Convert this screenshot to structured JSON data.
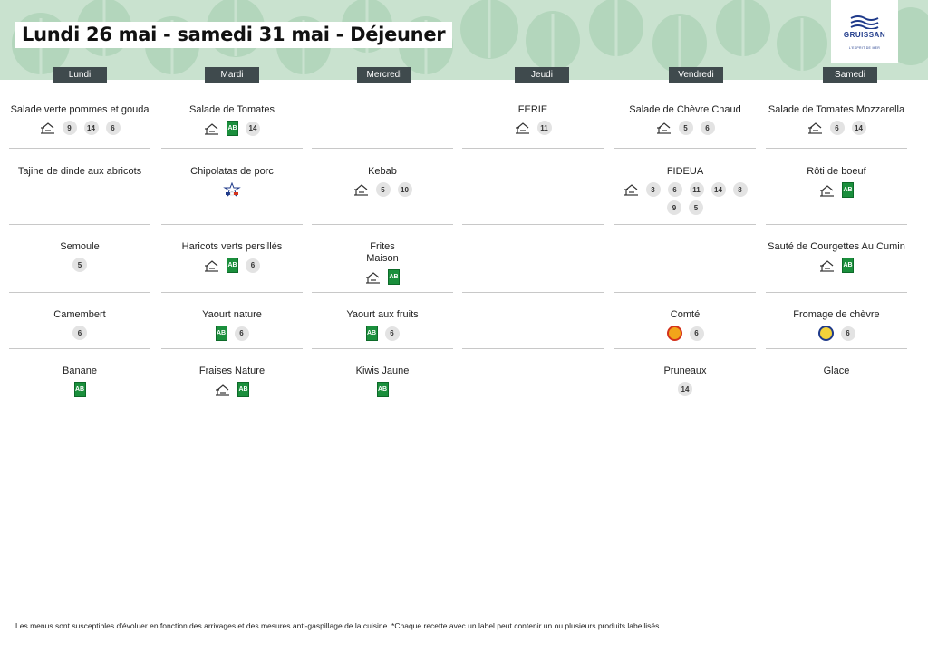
{
  "title": "Lundi 26 mai - samedi 31 mai  - Déjeuner",
  "logo": {
    "name": "GRUISSAN",
    "tagline": "L'ESPRIT DE MER"
  },
  "days": [
    "Lundi",
    "Mardi",
    "Mercredi",
    "Jeudi",
    "Vendredi",
    "Samedi"
  ],
  "menu": {
    "lundi": [
      {
        "name": "Salade verte pommes et gouda",
        "icons": [
          "house-icon"
        ],
        "badges": [
          "9",
          "14",
          "6"
        ]
      },
      {
        "name": "Tajine de dinde aux abricots",
        "icons": [],
        "badges": []
      },
      {
        "name": "Semoule",
        "icons": [],
        "badges": [
          "5"
        ]
      },
      {
        "name": "Camembert",
        "icons": [],
        "badges": [
          "6"
        ]
      },
      {
        "name": "Banane",
        "icons": [
          "ab-icon"
        ],
        "badges": []
      }
    ],
    "mardi": [
      {
        "name": "Salade de Tomates",
        "icons": [
          "house-icon",
          "ab-icon"
        ],
        "badges": [
          "14"
        ]
      },
      {
        "name": "Chipolatas de porc",
        "icons": [
          "vpf-icon"
        ],
        "badges": []
      },
      {
        "name": "Haricots verts persillés",
        "icons": [
          "house-icon",
          "ab-icon"
        ],
        "badges": [
          "6"
        ]
      },
      {
        "name": "Yaourt nature",
        "icons": [
          "ab-icon"
        ],
        "badges": [
          "6"
        ]
      },
      {
        "name": "Fraises Nature",
        "icons": [
          "house-icon",
          "ab-icon"
        ],
        "badges": []
      }
    ],
    "mercredi": [
      {
        "name": "",
        "icons": [],
        "badges": []
      },
      {
        "name": "Kebab",
        "icons": [
          "house-icon"
        ],
        "badges": [
          "5",
          "10"
        ]
      },
      {
        "name": "Frites\nMaison",
        "icons": [
          "house-icon",
          "ab-icon"
        ],
        "badges": []
      },
      {
        "name": "Yaourt aux fruits",
        "icons": [
          "ab-icon"
        ],
        "badges": [
          "6"
        ]
      },
      {
        "name": "Kiwis Jaune",
        "icons": [
          "ab-icon"
        ],
        "badges": []
      }
    ],
    "jeudi": [
      {
        "name": "FERIE",
        "icons": [
          "house-icon"
        ],
        "badges": [
          "11"
        ]
      },
      {
        "name": "",
        "icons": [],
        "badges": []
      },
      {
        "name": "",
        "icons": [],
        "badges": []
      },
      {
        "name": "",
        "icons": [],
        "badges": []
      },
      {
        "name": "",
        "icons": [],
        "badges": []
      }
    ],
    "vendredi": [
      {
        "name": "Salade de Chèvre Chaud",
        "icons": [
          "house-icon"
        ],
        "badges": [
          "5",
          "6"
        ]
      },
      {
        "name": "FIDEUA",
        "icons": [
          "house-icon"
        ],
        "badges": [
          "3",
          "6",
          "11",
          "14",
          "8",
          "9",
          "5"
        ]
      },
      {
        "name": "",
        "icons": [],
        "badges": []
      },
      {
        "name": "Comté",
        "icons": [
          "aop-icon"
        ],
        "badges": [
          "6"
        ]
      },
      {
        "name": "Pruneaux",
        "icons": [],
        "badges": [
          "14"
        ]
      }
    ],
    "samedi": [
      {
        "name": "Salade de Tomates Mozzarella",
        "icons": [
          "house-icon"
        ],
        "badges": [
          "6",
          "14"
        ]
      },
      {
        "name": "Rôti de boeuf",
        "icons": [
          "house-icon",
          "ab-icon"
        ],
        "badges": []
      },
      {
        "name": "Sauté de Courgettes Au Cumin",
        "icons": [
          "house-icon",
          "ab-icon"
        ],
        "badges": []
      },
      {
        "name": "Fromage de chèvre",
        "icons": [
          "label-rouge-icon"
        ],
        "badges": [
          "6"
        ]
      },
      {
        "name": "Glace",
        "icons": [],
        "badges": []
      }
    ]
  },
  "footer": "Les menus sont susceptibles d'évoluer en fonction des arrivages et des mesures anti-gaspillage de la cuisine. *Chaque recette avec un label peut contenir un ou plusieurs produits labellisés",
  "colors": {
    "banner": "#c9e2cf",
    "header": "#3f4a4d",
    "ab_green": "#1a8f3c",
    "badge": "#e3e3e3"
  }
}
